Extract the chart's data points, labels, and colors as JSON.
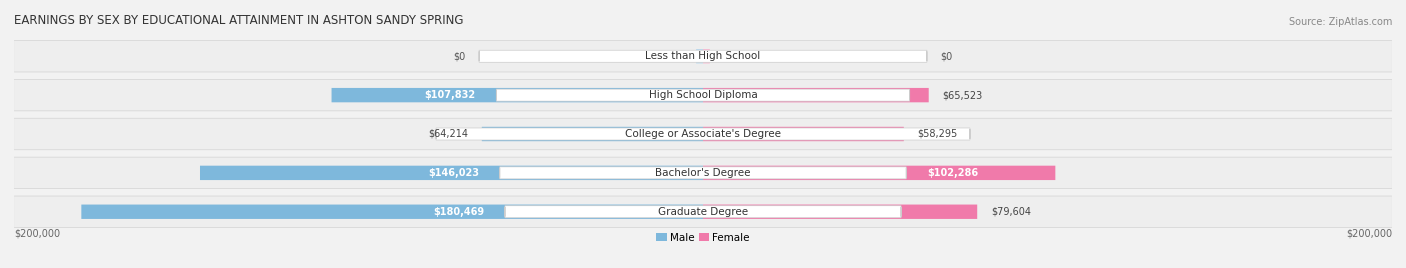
{
  "title": "EARNINGS BY SEX BY EDUCATIONAL ATTAINMENT IN ASHTON SANDY SPRING",
  "source": "Source: ZipAtlas.com",
  "categories": [
    "Less than High School",
    "High School Diploma",
    "College or Associate's Degree",
    "Bachelor's Degree",
    "Graduate Degree"
  ],
  "male_values": [
    0,
    107832,
    64214,
    146023,
    180469
  ],
  "female_values": [
    0,
    65523,
    58295,
    102286,
    79604
  ],
  "male_color": "#7eb8dc",
  "female_color": "#f07aaa",
  "male_color_light": "#b8d8ee",
  "female_color_light": "#f9b8d0",
  "max_value": 200000,
  "background_color": "#f2f2f2",
  "row_bg_color": "#e2e2e2",
  "row_bg_inner": "#ececec",
  "axis_label_left": "$200,000",
  "axis_label_right": "$200,000",
  "male_legend": "Male",
  "female_legend": "Female",
  "title_fontsize": 8.5,
  "source_fontsize": 7,
  "bar_label_fontsize": 7,
  "category_fontsize": 7.5,
  "axis_fontsize": 7,
  "legend_fontsize": 7.5
}
